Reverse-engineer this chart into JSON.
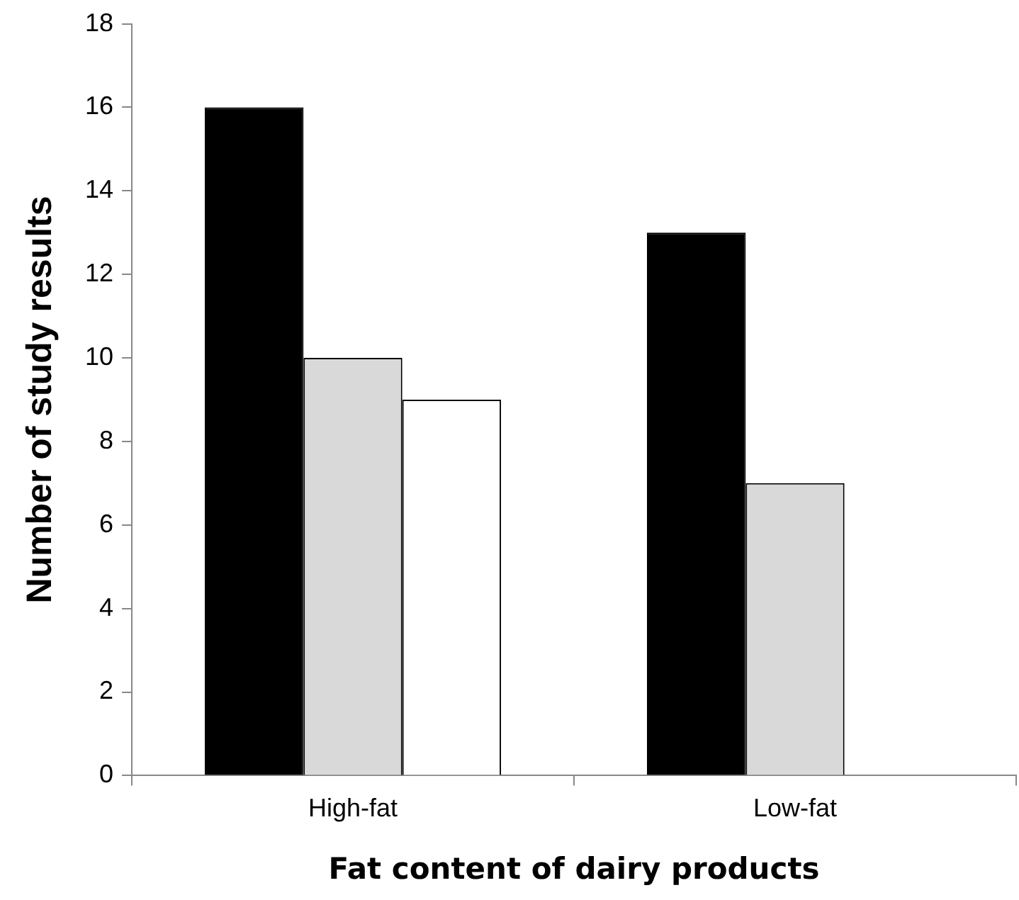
{
  "chart_data": {
    "type": "bar",
    "xlabel": "Fat content of dairy products",
    "ylabel": "Number of study results",
    "categories": [
      "High-fat",
      "Low-fat"
    ],
    "series": [
      {
        "color": "#000000",
        "values": [
          16,
          13
        ]
      },
      {
        "color": "#d9d9d9",
        "values": [
          10,
          7
        ]
      },
      {
        "color": "#ffffff",
        "values": [
          9,
          0
        ]
      }
    ],
    "ylim": [
      0,
      18
    ],
    "yticks": [
      0,
      2,
      4,
      6,
      8,
      10,
      12,
      14,
      16,
      18
    ],
    "grid": false,
    "legend": false
  }
}
